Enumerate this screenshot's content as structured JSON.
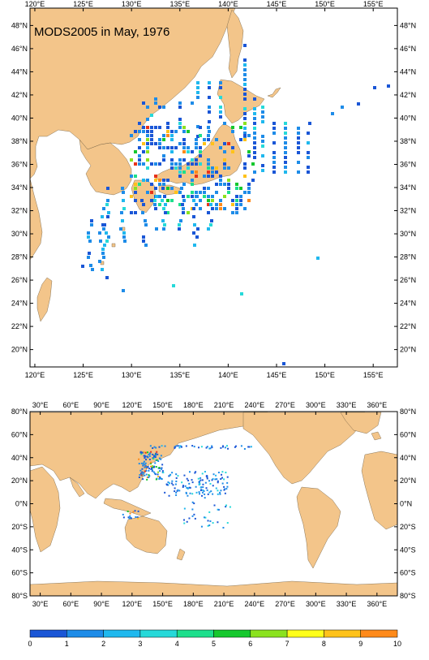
{
  "colors": {
    "land": "#f3c58a",
    "ocean": "#ffffff",
    "frame": "#000000"
  },
  "top_map": {
    "title": "MODS2005 in May, 1976",
    "lon_labels": [
      "120°E",
      "125°E",
      "130°E",
      "135°E",
      "140°E",
      "145°E",
      "150°E",
      "155°E"
    ],
    "lon_values": [
      120,
      125,
      130,
      135,
      140,
      145,
      150,
      155
    ],
    "lat_labels": [
      "20°N",
      "22°N",
      "24°N",
      "26°N",
      "28°N",
      "30°N",
      "32°N",
      "34°N",
      "36°N",
      "38°N",
      "40°N",
      "42°N",
      "44°N",
      "46°N",
      "48°N"
    ],
    "lat_values": [
      20,
      22,
      24,
      26,
      28,
      30,
      32,
      34,
      36,
      38,
      40,
      42,
      44,
      46,
      48
    ]
  },
  "bottom_map": {
    "lon_labels": [
      "30°E",
      "60°E",
      "90°E",
      "120°E",
      "150°E",
      "180°E",
      "210°E",
      "240°E",
      "270°E",
      "300°E",
      "330°E",
      "360°E"
    ],
    "lon_values": [
      30,
      60,
      90,
      120,
      150,
      180,
      210,
      240,
      270,
      300,
      330,
      360
    ],
    "lat_labels": [
      "80°S",
      "60°S",
      "40°S",
      "20°S",
      "0°N",
      "20°N",
      "40°N",
      "60°N",
      "80°N"
    ],
    "lat_values": [
      -80,
      -60,
      -40,
      -20,
      0,
      20,
      40,
      60,
      80
    ]
  },
  "colorbar": {
    "labels": [
      "0",
      "1",
      "2",
      "3",
      "4",
      "5",
      "6",
      "7",
      "8",
      "9",
      "10"
    ],
    "colors": [
      "#1a56d6",
      "#1e8ce8",
      "#1fb8ee",
      "#26d9d9",
      "#1ddf8c",
      "#16c82e",
      "#8be21f",
      "#ffff1a",
      "#ffc21a",
      "#ff8a1a",
      "#e8321a"
    ]
  }
}
